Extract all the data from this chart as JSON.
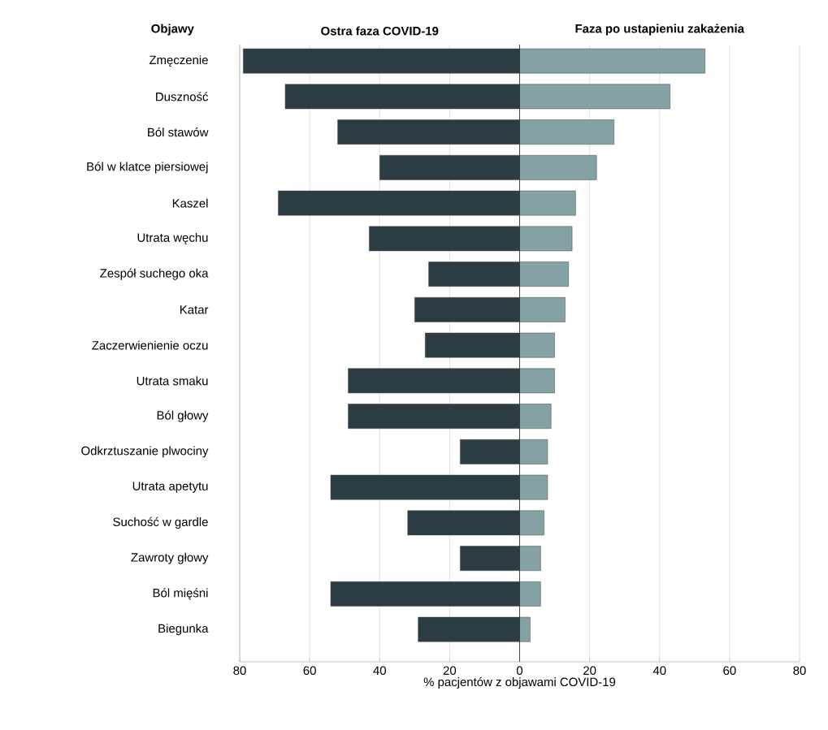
{
  "chart_data": {
    "type": "bar",
    "orientation": "horizontal",
    "stacked": true,
    "ylabel": "Objawy",
    "xlabel": "% pacjentów z objawami COVID-19",
    "categories": [
      "Zmęczenie",
      "Duszność",
      "Ból stawów",
      "Ból w klatce piersiowej",
      "Kaszel",
      "Utrata węchu",
      "Zespół suchego oka",
      "Katar",
      "Zaczerwienienie oczu",
      "Utrata smaku",
      "Ból głowy",
      "Odkrztuszanie plwociny",
      "Utrata apetytu",
      "Suchość w gardle",
      "Zawroty głowy",
      "Ból mięśni",
      "Biegunka"
    ],
    "series": [
      {
        "name": "Ostra faza COVID-19",
        "color": "#2b3d42",
        "values": [
          -79,
          -67,
          -52,
          -40,
          -69,
          -43,
          -26,
          -30,
          -27,
          -49,
          -49,
          -17,
          -54,
          -32,
          -17,
          -54,
          -29
        ]
      },
      {
        "name": "Faza po ustapieniu zakażenia",
        "color": "#84a2a4",
        "values": [
          53,
          43,
          27,
          22,
          16,
          15,
          14,
          13,
          10,
          10,
          9,
          8,
          8,
          7,
          6,
          6,
          3
        ]
      }
    ],
    "xlim": [
      -80,
      80
    ],
    "xticks": [
      {
        "value": -80,
        "label": "80"
      },
      {
        "value": -60,
        "label": "60"
      },
      {
        "value": -40,
        "label": "40"
      },
      {
        "value": -20,
        "label": "20"
      },
      0,
      20,
      40,
      60,
      80
    ],
    "ref_lines": [
      {
        "axis": "x",
        "value": 0,
        "color": "#333333"
      }
    ],
    "grid": "x"
  }
}
